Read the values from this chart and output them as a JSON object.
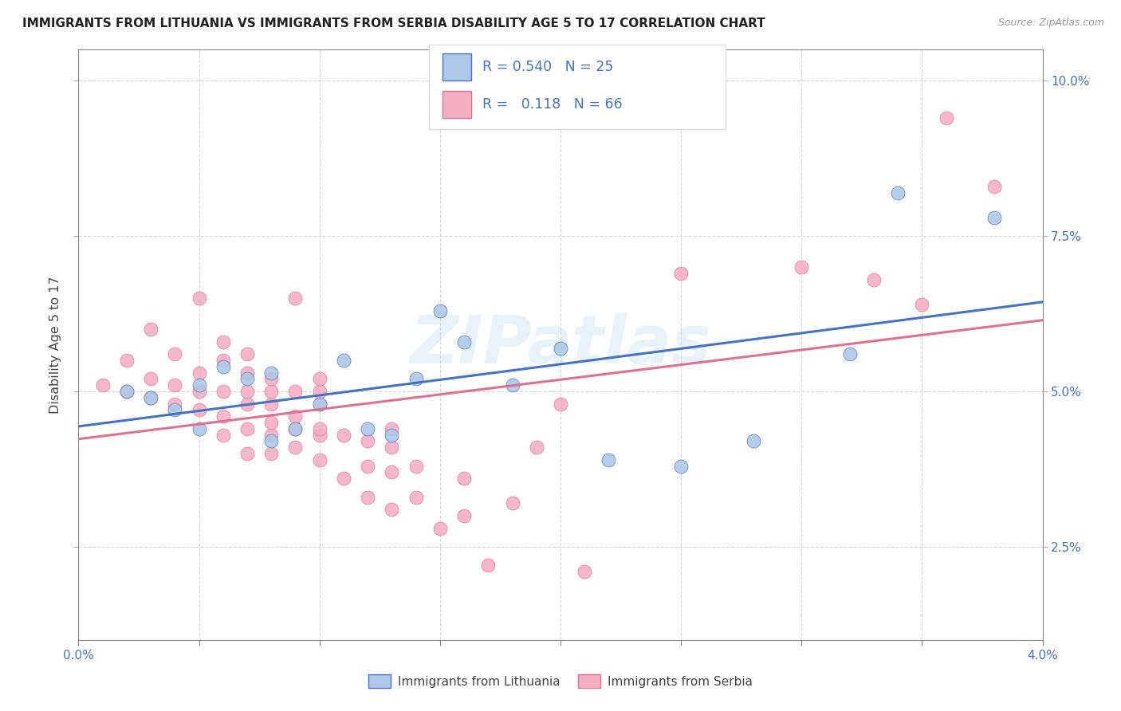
{
  "title": "IMMIGRANTS FROM LITHUANIA VS IMMIGRANTS FROM SERBIA DISABILITY AGE 5 TO 17 CORRELATION CHART",
  "source": "Source: ZipAtlas.com",
  "ylabel": "Disability Age 5 to 17",
  "xmin": 0.0,
  "xmax": 0.04,
  "ymin": 0.01,
  "ymax": 0.105,
  "yticks": [
    0.025,
    0.05,
    0.075,
    0.1
  ],
  "ytick_labels": [
    "2.5%",
    "5.0%",
    "7.5%",
    "10.0%"
  ],
  "xticks": [
    0.0,
    0.005,
    0.01,
    0.015,
    0.02,
    0.025,
    0.03,
    0.035,
    0.04
  ],
  "xtick_labels": [
    "0.0%",
    "",
    "",
    "",
    "",
    "",
    "",
    "",
    "4.0%"
  ],
  "legend_r_lithuania": "0.540",
  "legend_n_lithuania": "25",
  "legend_r_serbia": "0.118",
  "legend_n_serbia": "66",
  "color_lithuania": "#adc8e8",
  "color_serbia": "#f4afc4",
  "color_line_lithuania": "#4472c4",
  "color_line_serbia": "#e07090",
  "color_text_blue": "#4472c4",
  "watermark": "ZIPatlas",
  "lithuania_x": [
    0.002,
    0.003,
    0.004,
    0.005,
    0.005,
    0.006,
    0.007,
    0.008,
    0.008,
    0.009,
    0.01,
    0.011,
    0.012,
    0.013,
    0.014,
    0.015,
    0.016,
    0.018,
    0.02,
    0.022,
    0.025,
    0.028,
    0.032,
    0.034,
    0.038
  ],
  "lithuania_y": [
    0.05,
    0.049,
    0.047,
    0.051,
    0.044,
    0.054,
    0.052,
    0.053,
    0.042,
    0.044,
    0.048,
    0.055,
    0.044,
    0.043,
    0.052,
    0.063,
    0.058,
    0.051,
    0.057,
    0.039,
    0.038,
    0.042,
    0.056,
    0.082,
    0.078
  ],
  "serbia_x": [
    0.001,
    0.002,
    0.002,
    0.003,
    0.003,
    0.003,
    0.004,
    0.004,
    0.004,
    0.005,
    0.005,
    0.005,
    0.005,
    0.006,
    0.006,
    0.006,
    0.006,
    0.006,
    0.007,
    0.007,
    0.007,
    0.007,
    0.007,
    0.007,
    0.008,
    0.008,
    0.008,
    0.008,
    0.008,
    0.008,
    0.009,
    0.009,
    0.009,
    0.009,
    0.009,
    0.01,
    0.01,
    0.01,
    0.01,
    0.01,
    0.01,
    0.011,
    0.011,
    0.012,
    0.012,
    0.012,
    0.013,
    0.013,
    0.013,
    0.013,
    0.014,
    0.014,
    0.015,
    0.016,
    0.016,
    0.017,
    0.018,
    0.019,
    0.02,
    0.021,
    0.025,
    0.03,
    0.033,
    0.035,
    0.036,
    0.038
  ],
  "serbia_y": [
    0.051,
    0.05,
    0.055,
    0.049,
    0.052,
    0.06,
    0.048,
    0.051,
    0.056,
    0.047,
    0.05,
    0.053,
    0.065,
    0.043,
    0.046,
    0.05,
    0.055,
    0.058,
    0.04,
    0.044,
    0.048,
    0.05,
    0.053,
    0.056,
    0.04,
    0.043,
    0.045,
    0.048,
    0.05,
    0.052,
    0.041,
    0.044,
    0.046,
    0.05,
    0.065,
    0.039,
    0.043,
    0.044,
    0.048,
    0.05,
    0.052,
    0.036,
    0.043,
    0.033,
    0.038,
    0.042,
    0.031,
    0.037,
    0.041,
    0.044,
    0.033,
    0.038,
    0.028,
    0.03,
    0.036,
    0.022,
    0.032,
    0.041,
    0.048,
    0.021,
    0.069,
    0.07,
    0.068,
    0.064,
    0.094,
    0.083
  ]
}
